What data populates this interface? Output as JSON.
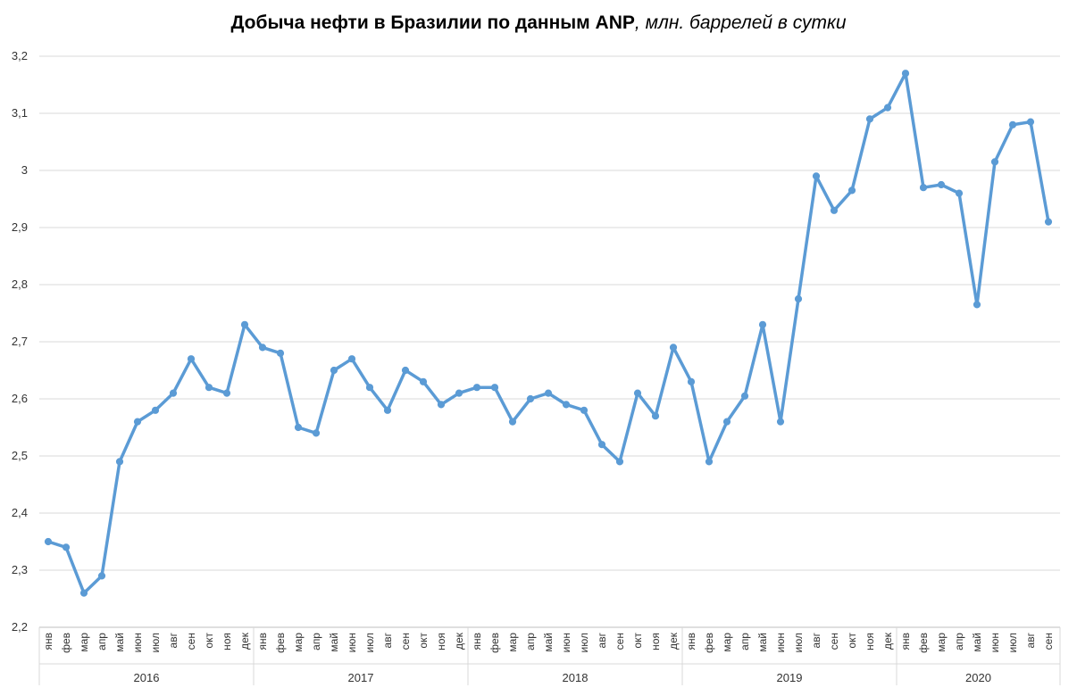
{
  "chart_data": {
    "type": "line",
    "title": "Добыча нефти в Бразилии по данным ANP",
    "unit": ", млн. баррелей в сутки",
    "xlabel": "",
    "ylabel": "",
    "ylim": [
      2.2,
      3.2
    ],
    "yticks": [
      "2,2",
      "2,3",
      "2,4",
      "2,5",
      "2,6",
      "2,7",
      "2,8",
      "2,9",
      "3",
      "3,1",
      "3,2"
    ],
    "grid": true,
    "color": "#5b9bd5",
    "years": [
      {
        "label": "2016",
        "months": [
          "янв",
          "фев",
          "мар",
          "апр",
          "май",
          "июн",
          "июл",
          "авг",
          "сен",
          "окт",
          "ноя",
          "дек"
        ]
      },
      {
        "label": "2017",
        "months": [
          "янв",
          "фев",
          "мар",
          "апр",
          "май",
          "июн",
          "июл",
          "авг",
          "сен",
          "окт",
          "ноя",
          "дек"
        ]
      },
      {
        "label": "2018",
        "months": [
          "янв",
          "фев",
          "мар",
          "апр",
          "май",
          "июн",
          "июл",
          "авг",
          "сен",
          "окт",
          "ноя",
          "дек"
        ]
      },
      {
        "label": "2019",
        "months": [
          "янв",
          "фев",
          "мар",
          "апр",
          "май",
          "июн",
          "июл",
          "авг",
          "сен",
          "окт",
          "ноя",
          "дек"
        ]
      },
      {
        "label": "2020",
        "months": [
          "янв",
          "фев",
          "мар",
          "апр",
          "май",
          "июн",
          "июл",
          "авг",
          "сен"
        ]
      }
    ],
    "series": [
      {
        "values": [
          2.35,
          2.34,
          2.26,
          2.29,
          2.49,
          2.56,
          2.58,
          2.61,
          2.67,
          2.62,
          2.61,
          2.73,
          2.69,
          2.68,
          2.55,
          2.54,
          2.65,
          2.67,
          2.62,
          2.58,
          2.65,
          2.63,
          2.59,
          2.61,
          2.62,
          2.62,
          2.56,
          2.6,
          2.61,
          2.59,
          2.58,
          2.52,
          2.49,
          2.61,
          2.57,
          2.69,
          2.63,
          2.49,
          2.56,
          2.605,
          2.73,
          2.56,
          2.775,
          2.99,
          2.93,
          2.965,
          3.09,
          3.11,
          3.17,
          2.97,
          2.975,
          2.96,
          2.765,
          3.015,
          3.08,
          3.085,
          2.91
        ]
      }
    ]
  }
}
